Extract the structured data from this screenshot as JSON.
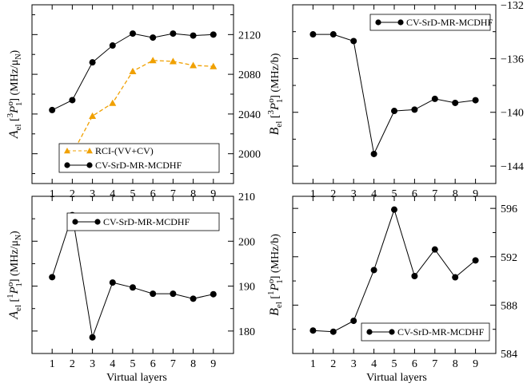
{
  "colors": {
    "black": "#000000",
    "orange": "#f0a000"
  },
  "chart_data": [
    {
      "id": "A3P1",
      "type": "line",
      "ylabel": "A_el[3P1^o] (MHz/μN)",
      "ylabel_parts": {
        "sym": "A",
        "sub": "el",
        "sup": "3",
        "P": "P",
        "Psup": "o",
        "Psub": "1",
        "unit": "(MHz/μ",
        "unitSub": "N",
        "unitEnd": ")"
      },
      "y_axis_side": "right",
      "xlim": [
        0,
        10
      ],
      "ylim": [
        1970,
        2150
      ],
      "xticks": [
        1,
        2,
        3,
        4,
        5,
        6,
        7,
        8,
        9
      ],
      "yticks": [
        2000,
        2040,
        2080,
        2120
      ],
      "series": [
        {
          "name": "RCI-(VV+CV)",
          "color": "#f0a000",
          "marker": "triangle",
          "dashed": true,
          "x": [
            2,
            3,
            4,
            5,
            6,
            7,
            8,
            9
          ],
          "values": [
            2000,
            2038,
            2051,
            2083,
            2094,
            2093,
            2089,
            2088
          ]
        },
        {
          "name": "CV-SrD-MR-MCDHF",
          "color": "#000000",
          "marker": "circle",
          "dashed": false,
          "x": [
            1,
            2,
            3,
            4,
            5,
            6,
            7,
            8,
            9
          ],
          "values": [
            2044,
            2054,
            2092,
            2109,
            2121,
            2117,
            2121,
            2119,
            2120
          ]
        }
      ],
      "legend": "bottom-center"
    },
    {
      "id": "B3P1",
      "type": "line",
      "ylabel": "B_el[3P1^o] (MHz/b)",
      "ylabel_parts": {
        "sym": "B",
        "sub": "el",
        "sup": "3",
        "P": "P",
        "Psup": "o",
        "Psub": "1",
        "unit": "(MHz/b)",
        "unitSub": "",
        "unitEnd": ""
      },
      "y_axis_side": "right",
      "xlim": [
        0,
        10
      ],
      "ylim": [
        -145.3,
        -132
      ],
      "xticks": [
        1,
        2,
        3,
        4,
        5,
        6,
        7,
        8,
        9
      ],
      "yticks": [
        -132,
        -136,
        -140,
        -144
      ],
      "series": [
        {
          "name": "CV-SrD-MR-MCDHF",
          "color": "#000000",
          "marker": "circle",
          "dashed": false,
          "x": [
            1,
            2,
            3,
            4,
            5,
            6,
            7,
            8,
            9
          ],
          "values": [
            -134.2,
            -134.2,
            -134.7,
            -143.1,
            -139.9,
            -139.8,
            -139.0,
            -139.3,
            -139.1
          ]
        }
      ],
      "legend": "top-right"
    },
    {
      "id": "A1P1",
      "type": "line",
      "ylabel": "A_el[1P1^o] (MHz/μN)",
      "ylabel_parts": {
        "sym": "A",
        "sub": "el",
        "sup": "1",
        "P": "P",
        "Psup": "o",
        "Psub": "1",
        "unit": "(MHz/μ",
        "unitSub": "N",
        "unitEnd": ")"
      },
      "y_axis_side": "right",
      "xlim": [
        0,
        10
      ],
      "ylim": [
        175,
        210
      ],
      "xticks": [
        1,
        2,
        3,
        4,
        5,
        6,
        7,
        8,
        9
      ],
      "yticks": [
        180,
        190,
        200,
        210
      ],
      "series": [
        {
          "name": "CV-SrD-MR-MCDHF",
          "color": "#000000",
          "marker": "circle",
          "dashed": false,
          "x": [
            1,
            2,
            3,
            4,
            5,
            6,
            7,
            8,
            9
          ],
          "values": [
            192.0,
            205.8,
            178.6,
            190.8,
            189.7,
            188.3,
            188.3,
            187.2,
            188.2
          ]
        }
      ],
      "legend": "top-right"
    },
    {
      "id": "B1P1",
      "type": "line",
      "ylabel": "B_el[1P1^o] (MHz/b)",
      "ylabel_parts": {
        "sym": "B",
        "sub": "el",
        "sup": "1",
        "P": "P",
        "Psup": "o",
        "Psub": "1",
        "unit": "(MHz/b)",
        "unitSub": "",
        "unitEnd": ""
      },
      "y_axis_side": "right",
      "xlim": [
        0,
        10
      ],
      "ylim": [
        584,
        597
      ],
      "xticks": [
        1,
        2,
        3,
        4,
        5,
        6,
        7,
        8,
        9
      ],
      "yticks": [
        584,
        588,
        592,
        596
      ],
      "series": [
        {
          "name": "CV-SrD-MR-MCDHF",
          "color": "#000000",
          "marker": "circle",
          "dashed": false,
          "x": [
            1,
            2,
            3,
            4,
            5,
            6,
            7,
            8,
            9
          ],
          "values": [
            585.9,
            585.8,
            586.7,
            590.9,
            595.9,
            590.4,
            592.6,
            590.3,
            591.7
          ]
        }
      ],
      "legend": "bottom-right"
    }
  ],
  "xlabel": "Virtual layers"
}
